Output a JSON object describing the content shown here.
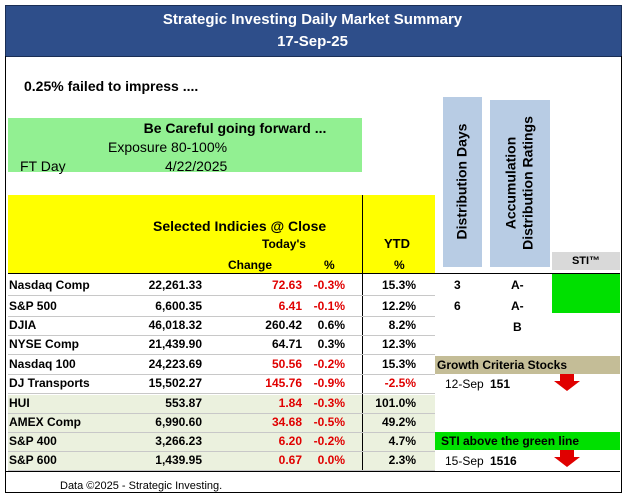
{
  "header": {
    "title": "Strategic Investing Daily Market Summary",
    "date": "17-Sep-25"
  },
  "headline": "0.25% failed to impress ....",
  "outlook": {
    "message": "Be Careful going forward ...",
    "exposure": "Exposure 80-100%",
    "ft_day_label": "FT Day",
    "ft_day": "4/22/2025"
  },
  "table": {
    "title": "Selected Indicies @ Close",
    "todays": "Today's",
    "ytd": "YTD",
    "columns": [
      "Change",
      "%",
      "%"
    ],
    "rows": [
      [
        "Nasdaq Comp",
        "22,261.33",
        "72.63",
        "-0.3%",
        "15.3%"
      ],
      [
        "S&P 500",
        "6,600.35",
        "6.41",
        "-0.1%",
        "12.2%"
      ],
      [
        "DJIA",
        "46,018.32",
        "260.42",
        "0.6%",
        "8.2%"
      ],
      [
        "NYSE Comp",
        "21,439.90",
        "64.71",
        "0.3%",
        "12.3%"
      ],
      [
        "Nasdaq 100",
        "24,223.69",
        "50.56",
        "-0.2%",
        "15.3%"
      ],
      [
        "DJ Transports",
        "15,502.27",
        "145.76",
        "-0.9%",
        "-2.5%"
      ],
      [
        "HUI",
        "553.87",
        "1.84",
        "-0.3%",
        "101.0%"
      ],
      [
        "AMEX Comp",
        "6,990.60",
        "34.68",
        "-0.5%",
        "49.2%"
      ],
      [
        "S&P 400",
        "3,266.23",
        "6.20",
        "-0.2%",
        "4.7%"
      ],
      [
        "S&P 600",
        "1,439.95",
        "0.67",
        "0.0%",
        "2.3%"
      ]
    ]
  },
  "distribution_days": {
    "label": "Distribution Days",
    "values": [
      "3",
      "6"
    ]
  },
  "ratings": {
    "label": "Accumulation Distribution Ratings",
    "values": [
      "A-",
      "A-",
      "B"
    ]
  },
  "sti": {
    "label": "STI™"
  },
  "growth": {
    "label": "Growth Criteria Stocks",
    "date": "12-Sep",
    "value": "151"
  },
  "sti_line": {
    "label": "STI above the green line",
    "date": "15-Sep",
    "value": "1516"
  },
  "footer": "Data ©2025 -  Strategic Investing."
}
